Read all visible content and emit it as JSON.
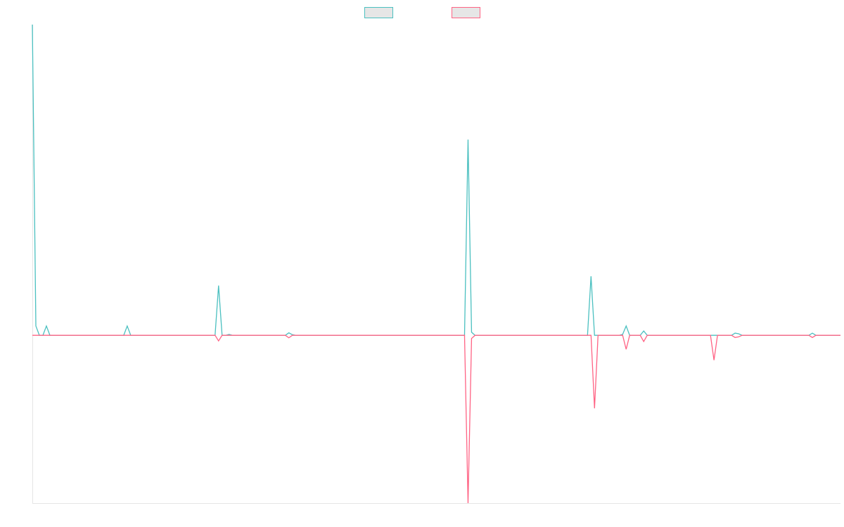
{
  "chart_data": {
    "type": "line",
    "legend": "top",
    "ylim": [
      -54,
      100
    ],
    "categories": [
      null,
      null,
      null,
      null,
      null,
      null,
      null,
      null,
      null,
      null,
      null,
      null,
      null,
      null,
      null,
      null,
      null,
      null,
      null,
      null,
      null,
      null,
      null,
      null,
      null,
      null,
      null,
      null,
      null,
      null,
      null,
      null,
      null,
      null,
      null,
      null,
      null,
      null,
      null,
      null,
      null,
      null,
      null,
      null,
      null,
      null,
      null,
      null,
      null,
      null,
      null,
      null,
      null,
      null,
      null,
      null,
      null,
      null,
      null,
      null,
      null,
      null,
      null,
      null,
      null,
      null,
      null,
      null,
      null,
      null,
      null,
      null,
      null,
      null,
      null,
      null,
      null,
      null,
      null,
      null,
      null,
      null,
      null,
      null,
      null,
      null,
      null,
      null,
      null,
      null,
      null,
      null,
      null,
      null,
      null,
      null,
      null,
      null,
      null,
      null,
      null,
      null,
      null,
      null,
      null,
      null,
      null,
      null,
      null,
      null,
      null,
      null,
      null,
      null,
      null,
      null,
      null,
      null,
      null,
      null,
      null,
      null,
      null,
      null,
      null,
      null,
      null,
      null,
      null,
      null,
      null,
      null,
      null,
      null,
      null,
      null,
      null,
      null,
      null,
      null,
      null,
      null,
      null,
      null,
      null,
      null,
      null,
      null,
      null,
      null,
      null,
      null,
      null,
      null,
      null,
      null,
      null,
      null,
      null,
      null,
      null,
      null,
      null,
      null,
      null,
      null,
      null,
      null,
      null,
      null,
      null,
      null,
      null,
      null,
      null,
      null,
      null,
      null,
      null,
      null,
      null,
      null,
      null,
      null,
      null,
      null,
      null,
      null,
      null,
      null,
      null,
      null,
      null,
      null,
      null,
      null,
      null,
      null,
      null,
      null,
      null,
      null,
      null,
      null,
      null,
      null,
      null,
      null,
      null,
      null,
      null,
      null,
      null,
      null,
      null,
      null,
      null,
      null,
      null,
      null,
      null,
      null,
      null,
      null,
      null,
      null,
      null,
      null,
      null,
      null,
      null
    ],
    "series": [
      {
        "color": "#4bc0c0",
        "values": [
          100,
          3,
          0,
          0,
          3,
          0,
          0,
          0,
          0,
          0,
          0,
          0,
          0,
          0,
          0,
          0,
          0,
          0,
          0,
          0,
          0,
          0,
          0,
          0,
          0,
          0,
          0,
          3,
          0,
          0,
          0,
          0,
          0,
          0,
          0,
          0,
          0,
          0,
          0,
          0,
          0,
          0,
          0,
          0,
          0,
          0,
          0,
          0,
          0,
          0,
          0,
          0,
          0,
          16,
          0,
          0,
          0.3,
          0,
          0,
          0,
          0,
          0,
          0,
          0,
          0,
          0,
          0,
          0,
          0,
          0,
          0,
          0,
          0,
          0.8,
          0.2,
          0,
          0,
          0,
          0,
          0,
          0,
          0,
          0,
          0,
          0,
          0,
          0,
          0,
          0,
          0,
          0,
          0,
          0,
          0,
          0,
          0,
          0,
          0,
          0,
          0,
          0,
          0,
          0,
          0,
          0,
          0,
          0,
          0,
          0,
          0,
          0,
          0,
          0,
          0,
          0,
          0,
          0,
          0,
          0,
          0,
          0,
          0,
          0,
          0,
          63,
          1,
          0,
          0,
          0,
          0,
          0,
          0,
          0,
          0,
          0,
          0,
          0,
          0,
          0,
          0,
          0,
          0,
          0,
          0,
          0,
          0,
          0,
          0,
          0,
          0,
          0,
          0,
          0,
          0,
          0,
          0,
          0,
          0,
          0,
          19,
          0,
          0,
          0,
          0,
          0,
          0,
          0,
          0,
          0.3,
          3,
          0,
          0,
          0,
          0,
          1.4,
          0,
          0,
          0,
          0,
          0,
          0,
          0,
          0,
          0,
          0,
          0,
          0,
          0,
          0,
          0,
          0,
          0,
          0,
          0,
          0,
          0,
          0,
          0,
          0,
          0,
          0.7,
          0.5,
          0,
          0,
          0,
          0,
          0,
          0,
          0,
          0,
          0,
          0,
          0,
          0,
          0,
          0,
          0,
          0,
          0,
          0,
          0,
          0,
          0.7,
          0,
          0,
          0,
          0,
          0,
          0,
          0,
          0
        ]
      },
      {
        "color": "#ff6384",
        "values": [
          0,
          0,
          0,
          0,
          0,
          0,
          0,
          0,
          0,
          0,
          0,
          0,
          0,
          0,
          0,
          0,
          0,
          0,
          0,
          0,
          0,
          0,
          0,
          0,
          0,
          0,
          0,
          0,
          0,
          0,
          0,
          0,
          0,
          0,
          0,
          0,
          0,
          0,
          0,
          0,
          0,
          0,
          0,
          0,
          0,
          0,
          0,
          0,
          0,
          0,
          0,
          0,
          0,
          -1.8,
          0,
          0,
          0,
          0,
          0,
          0,
          0,
          0,
          0,
          0,
          0,
          0,
          0,
          0,
          0,
          0,
          0,
          0,
          0,
          -0.8,
          0,
          0,
          0,
          0,
          0,
          0,
          0,
          0,
          0,
          0,
          0,
          0,
          0,
          0,
          0,
          0,
          0,
          0,
          0,
          0,
          0,
          0,
          0,
          0,
          0,
          0,
          0,
          0,
          0,
          0,
          0,
          0,
          0,
          0,
          0,
          0,
          0,
          0,
          0,
          0,
          0,
          0,
          0,
          0,
          0,
          0,
          0,
          0,
          0,
          0,
          -54,
          -1,
          0,
          0,
          0,
          0,
          0,
          0,
          0,
          0,
          0,
          0,
          0,
          0,
          0,
          0,
          0,
          0,
          0,
          0,
          0,
          0,
          0,
          0,
          0,
          0,
          0,
          0,
          0,
          0,
          0,
          0,
          0,
          0,
          0,
          0,
          -23.5,
          0,
          0,
          0,
          0,
          0,
          0,
          0,
          0,
          -4.5,
          0,
          0,
          0,
          0,
          -2,
          0,
          0,
          0,
          0,
          0,
          0,
          0,
          0,
          0,
          0,
          0,
          0,
          0,
          0,
          0,
          0,
          0,
          0,
          0,
          -8,
          0,
          0,
          0,
          0,
          0,
          -0.7,
          -0.5,
          0,
          0,
          0,
          0,
          0,
          0,
          0,
          0,
          0,
          0,
          0,
          0,
          0,
          0,
          0,
          0,
          0,
          0,
          0,
          0,
          -0.7,
          0,
          0,
          0,
          0,
          0,
          0,
          0,
          0
        ]
      }
    ]
  }
}
